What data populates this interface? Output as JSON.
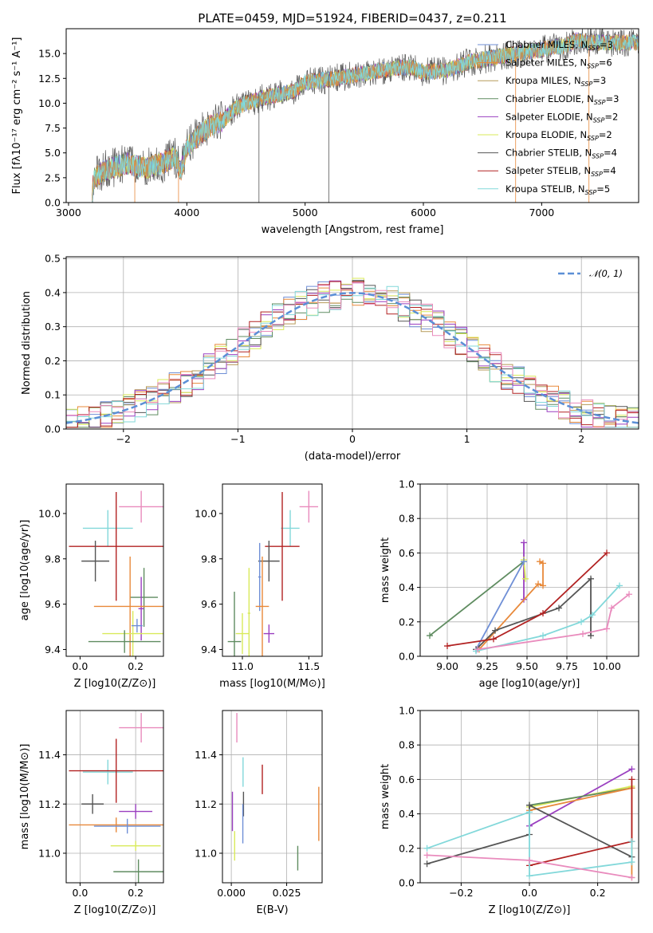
{
  "colors": {
    "Chabrier MILES": "#6f8fd6",
    "Salpeter MILES": "#e8893a",
    "Kroupa MILES": "#b69a58",
    "Chabrier ELODIE": "#5f8c60",
    "Salpeter ELODIE": "#9a3fc0",
    "Kroupa ELODIE": "#d9ea5a",
    "Chabrier STELIB": "#555555",
    "Salpeter STELIB": "#b22222",
    "Kroupa STELIB": "#82d8da",
    "pink": "#e98bbd",
    "gaussian": "#5b8fd6"
  },
  "chart_data": [
    {
      "id": "spectrum",
      "type": "line",
      "title": "PLATE=0459, MJD=51924, FIBERID=0437, z=0.211",
      "xlabel": "wavelength [Angstrom, rest frame]",
      "ylabel": "Flux [fλ10⁻¹⁷ erg cm⁻² s⁻¹ A⁻¹]",
      "xlim": [
        2980,
        7820
      ],
      "ylim": [
        0,
        17.5
      ],
      "xticks": [
        "3000",
        "4000",
        "5000",
        "6000",
        "7000"
      ],
      "yticks": [
        "0.0",
        "2.5",
        "5.0",
        "7.5",
        "10.0",
        "12.5",
        "15.0"
      ],
      "legend_position": "upper-right",
      "legend": [
        {
          "label": "Chabrier MILES, N",
          "sub": "SSP",
          "suffix": "=3"
        },
        {
          "label": "Salpeter MILES, N",
          "sub": "SSP",
          "suffix": "=6"
        },
        {
          "label": "Kroupa MILES, N",
          "sub": "SSP",
          "suffix": "=3"
        },
        {
          "label": "Chabrier ELODIE, N",
          "sub": "SSP",
          "suffix": "=3"
        },
        {
          "label": "Salpeter ELODIE, N",
          "sub": "SSP",
          "suffix": "=2"
        },
        {
          "label": "Kroupa ELODIE, N",
          "sub": "SSP",
          "suffix": "=2"
        },
        {
          "label": "Chabrier STELIB, N",
          "sub": "SSP",
          "suffix": "=4"
        },
        {
          "label": "Salpeter STELIB, N",
          "sub": "SSP",
          "suffix": "=4"
        },
        {
          "label": "Kroupa STELIB, N",
          "sub": "SSP",
          "suffix": "=5"
        }
      ],
      "continuum": [
        [
          3200,
          0.0
        ],
        [
          3210,
          2.4
        ],
        [
          3300,
          3.2
        ],
        [
          3400,
          3.6
        ],
        [
          3500,
          3.9
        ],
        [
          3650,
          3.5
        ],
        [
          3700,
          3.6
        ],
        [
          3800,
          4.0
        ],
        [
          3900,
          4.6
        ],
        [
          3950,
          3.2
        ],
        [
          4000,
          5.5
        ],
        [
          4100,
          6.8
        ],
        [
          4200,
          7.7
        ],
        [
          4300,
          8.2
        ],
        [
          4400,
          9.4
        ],
        [
          4500,
          10.0
        ],
        [
          4700,
          10.7
        ],
        [
          4900,
          11.2
        ],
        [
          5000,
          12.1
        ],
        [
          5200,
          12.4
        ],
        [
          5400,
          12.8
        ],
        [
          5600,
          13.2
        ],
        [
          5800,
          13.6
        ],
        [
          5900,
          13.6
        ],
        [
          6000,
          13.1
        ],
        [
          6200,
          13.3
        ],
        [
          6400,
          14.2
        ],
        [
          6600,
          14.6
        ],
        [
          6800,
          15.0
        ],
        [
          7000,
          15.4
        ],
        [
          7200,
          15.8
        ],
        [
          7300,
          16.4
        ],
        [
          7400,
          16.1
        ]
      ],
      "drops": [
        [
          3560,
          "#e8893a"
        ],
        [
          3930,
          "#e8893a"
        ],
        [
          6780,
          "#e8893a"
        ],
        [
          7400,
          "#e8893a"
        ],
        [
          4610,
          "#555555"
        ],
        [
          5200,
          "#555555"
        ]
      ],
      "noise_amplitude": 0.9
    },
    {
      "id": "residuals",
      "type": "histogram",
      "xlabel": "(data-model)/error",
      "ylabel": "Normed distribution",
      "xlim": [
        -2.5,
        2.5
      ],
      "ylim": [
        0,
        0.505
      ],
      "xticks": [
        "−2",
        "−1",
        "0",
        "1",
        "2"
      ],
      "yticks": [
        "0.0",
        "0.1",
        "0.2",
        "0.3",
        "0.4",
        "0.5"
      ],
      "bin_width": 0.1,
      "legend": [
        {
          "label": "𝒩(0, 1)",
          "style": "dashed"
        }
      ],
      "legend_position": "upper-right",
      "gaussian": {
        "mu": 0,
        "sigma": 1
      }
    },
    {
      "id": "age_Z",
      "type": "errorbar",
      "xlabel": "Z [log10(Z/Z⊙)]",
      "ylabel": "age  [log10(age/yr)]",
      "xlim": [
        -0.05,
        0.3
      ],
      "ylim": [
        9.37,
        10.13
      ],
      "xticks": [
        {
          "v": 0.0,
          "t": "0.0"
        },
        {
          "v": 0.2,
          "t": "0.2"
        }
      ],
      "yticks": [
        {
          "v": 9.4,
          "t": "9.4"
        },
        {
          "v": 9.6,
          "t": "9.6"
        },
        {
          "v": 9.8,
          "t": "9.8"
        },
        {
          "v": 10.0,
          "t": "10.0"
        }
      ],
      "points": [
        {
          "color": "pink",
          "x": 0.22,
          "xe": 0.08,
          "y": 10.03,
          "ye": 0.07
        },
        {
          "color": "Kroupa STELIB",
          "x": 0.1,
          "xe": 0.09,
          "y": 9.935,
          "ye": 0.08
        },
        {
          "color": "Salpeter STELIB",
          "x": 0.13,
          "xe": 0.17,
          "y": 9.855,
          "ye": 0.24
        },
        {
          "color": "Chabrier STELIB",
          "x": 0.055,
          "xe": 0.05,
          "y": 9.79,
          "ye": 0.09
        },
        {
          "color": "Chabrier ELODIE",
          "x": 0.23,
          "xe": 0.05,
          "y": 9.63,
          "ye": 0.13
        },
        {
          "color": "Salpeter ELODIE",
          "x": 0.22,
          "xe": 0.01,
          "y": 9.58,
          "ye": 0.14
        },
        {
          "color": "Salpeter MILES",
          "x": 0.18,
          "xe": 0.13,
          "y": 9.59,
          "ye": 0.22
        },
        {
          "color": "Kroupa ELODIE",
          "x": 0.19,
          "xe": 0.11,
          "y": 9.47,
          "ye": 0.1
        },
        {
          "color": "Chabrier ELODIE",
          "x": 0.16,
          "xe": 0.13,
          "y": 9.435,
          "ye": 0.05
        },
        {
          "color": "Chabrier MILES",
          "x": 0.205,
          "xe": 0.02,
          "y": 9.505,
          "ye": 0.03
        }
      ]
    },
    {
      "id": "age_mass",
      "type": "errorbar",
      "xlabel": "mass [log10(M/M⊙)]",
      "ylabel": "",
      "xlim": [
        10.85,
        11.6
      ],
      "ylim": [
        9.37,
        10.13
      ],
      "xticks": [
        {
          "v": 11.0,
          "t": "11.0"
        },
        {
          "v": 11.5,
          "t": "11.5"
        }
      ],
      "yticks": [
        {
          "v": 9.4,
          "t": "9.4"
        },
        {
          "v": 9.6,
          "t": "9.6"
        },
        {
          "v": 9.8,
          "t": "9.8"
        },
        {
          "v": 10.0,
          "t": "10.0"
        }
      ],
      "points": [
        {
          "color": "pink",
          "x": 11.5,
          "xe": 0.07,
          "y": 10.03,
          "ye": 0.07
        },
        {
          "color": "Kroupa STELIB",
          "x": 11.36,
          "xe": 0.07,
          "y": 9.935,
          "ye": 0.08
        },
        {
          "color": "Salpeter STELIB",
          "x": 11.3,
          "xe": 0.13,
          "y": 9.855,
          "ye": 0.24
        },
        {
          "color": "Chabrier STELIB",
          "x": 11.2,
          "xe": 0.08,
          "y": 9.79,
          "ye": 0.09
        },
        {
          "color": "Chabrier MILES",
          "x": 11.13,
          "xe": 0.01,
          "y": 9.72,
          "ye": 0.15
        },
        {
          "color": "Salpeter MILES",
          "x": 11.15,
          "xe": 0.05,
          "y": 9.59,
          "ye": 0.22
        },
        {
          "color": "Kroupa ELODIE",
          "x": 11.0,
          "xe": 0.05,
          "y": 9.47,
          "ye": 0.09
        },
        {
          "color": "Salpeter ELODIE",
          "x": 11.2,
          "xe": 0.04,
          "y": 9.47,
          "ye": 0.04
        },
        {
          "color": "Chabrier ELODIE",
          "x": 10.94,
          "xe": 0.05,
          "y": 9.435,
          "ye": 0.22
        },
        {
          "color": "Kroupa ELODIE",
          "x": 11.05,
          "xe": 0.01,
          "y": 9.56,
          "ye": 0.2
        }
      ]
    },
    {
      "id": "weight_age",
      "type": "line",
      "xlabel": "age  [log10(age/yr)]",
      "ylabel": "mass weight",
      "xlim": [
        8.83,
        10.2
      ],
      "ylim": [
        0,
        1.0
      ],
      "xticks": [
        {
          "v": 9.0,
          "t": "9.00"
        },
        {
          "v": 9.25,
          "t": "9.25"
        },
        {
          "v": 9.5,
          "t": "9.50"
        },
        {
          "v": 9.75,
          "t": "9.75"
        },
        {
          "v": 10.0,
          "t": "10.00"
        }
      ],
      "yticks": [
        {
          "v": 0,
          "t": "0.0"
        },
        {
          "v": 0.2,
          "t": "0.2"
        },
        {
          "v": 0.4,
          "t": "0.4"
        },
        {
          "v": 0.6,
          "t": "0.6"
        },
        {
          "v": 0.8,
          "t": "0.8"
        },
        {
          "v": 1.0,
          "t": "1.0"
        }
      ],
      "series": [
        {
          "color": "Chabrier ELODIE",
          "x": [
            8.89,
            9.48
          ],
          "y": [
            0.12,
            0.55
          ]
        },
        {
          "color": "Salpeter ELODIE",
          "x": [
            9.48,
            9.48
          ],
          "y": [
            0.66,
            0.33
          ]
        },
        {
          "color": "Kroupa ELODIE",
          "x": [
            9.48,
            9.49
          ],
          "y": [
            0.56,
            0.45
          ]
        },
        {
          "color": "Chabrier MILES",
          "x": [
            9.18,
            9.48
          ],
          "y": [
            0.04,
            0.55
          ]
        },
        {
          "color": "Salpeter MILES",
          "x": [
            9.2,
            9.57,
            9.6,
            9.6,
            9.58
          ],
          "y": [
            0.04,
            0.42,
            0.41,
            0.54,
            0.55
          ]
        },
        {
          "color": "Chabrier STELIB",
          "x": [
            9.18,
            9.3,
            9.7,
            9.9,
            9.9
          ],
          "y": [
            0.04,
            0.15,
            0.28,
            0.45,
            0.12
          ]
        },
        {
          "color": "Salpeter STELIB",
          "x": [
            9.0,
            9.29,
            9.6,
            10.0
          ],
          "y": [
            0.06,
            0.1,
            0.25,
            0.6
          ]
        },
        {
          "color": "Kroupa STELIB",
          "x": [
            9.18,
            9.6,
            9.84,
            9.91,
            10.08
          ],
          "y": [
            0.03,
            0.12,
            0.2,
            0.24,
            0.41
          ]
        },
        {
          "color": "pink",
          "x": [
            9.19,
            9.85,
            10.0,
            10.03,
            10.14
          ],
          "y": [
            0.04,
            0.13,
            0.16,
            0.28,
            0.36
          ]
        }
      ]
    },
    {
      "id": "mass_Z",
      "type": "errorbar",
      "xlabel": "Z [log10(Z/Z⊙)]",
      "ylabel": "mass [log10(M/M⊙)]",
      "xlim": [
        -0.05,
        0.3
      ],
      "ylim": [
        10.88,
        11.58
      ],
      "xticks": [
        {
          "v": 0.0,
          "t": "0.0"
        },
        {
          "v": 0.2,
          "t": "0.2"
        }
      ],
      "yticks": [
        {
          "v": 11.0,
          "t": "11.0"
        },
        {
          "v": 11.2,
          "t": "11.2"
        },
        {
          "v": 11.4,
          "t": "11.4"
        }
      ],
      "points": [
        {
          "color": "pink",
          "x": 0.22,
          "xe": 0.08,
          "y": 11.51,
          "ye": 0.06
        },
        {
          "color": "Kroupa STELIB",
          "x": 0.1,
          "xe": 0.09,
          "y": 11.33,
          "ye": 0.05
        },
        {
          "color": "Salpeter STELIB",
          "x": 0.13,
          "xe": 0.17,
          "y": 11.335,
          "ye": 0.13
        },
        {
          "color": "Chabrier STELIB",
          "x": 0.045,
          "xe": 0.04,
          "y": 11.2,
          "ye": 0.04
        },
        {
          "color": "Salpeter ELODIE",
          "x": 0.2,
          "xe": 0.06,
          "y": 11.17,
          "ye": 0.03
        },
        {
          "color": "Salpeter MILES",
          "x": 0.13,
          "xe": 0.17,
          "y": 11.115,
          "ye": 0.03
        },
        {
          "color": "Chabrier MILES",
          "x": 0.17,
          "xe": 0.12,
          "y": 11.11,
          "ye": 0.03
        },
        {
          "color": "Kroupa ELODIE",
          "x": 0.2,
          "xe": 0.09,
          "y": 11.03,
          "ye": 0.02
        },
        {
          "color": "Chabrier ELODIE",
          "x": 0.21,
          "xe": 0.09,
          "y": 10.925,
          "ye": 0.05
        }
      ]
    },
    {
      "id": "mass_EBV",
      "type": "errorbar",
      "xlabel": "E(B-V)",
      "ylabel": "",
      "xlim": [
        -0.004,
        0.041
      ],
      "ylim": [
        10.88,
        11.58
      ],
      "xticks": [
        {
          "v": 0.0,
          "t": "0.000"
        },
        {
          "v": 0.025,
          "t": "0.025"
        }
      ],
      "yticks": [
        {
          "v": 11.0,
          "t": "11.0"
        },
        {
          "v": 11.2,
          "t": "11.2"
        },
        {
          "v": 11.4,
          "t": "11.4"
        }
      ],
      "points": [
        {
          "color": "pink",
          "x": 0.0025,
          "xe": 0,
          "y": 11.51,
          "ye": 0.06
        },
        {
          "color": "Kroupa STELIB",
          "x": 0.0053,
          "xe": 0,
          "y": 11.33,
          "ye": 0.06
        },
        {
          "color": "Salpeter STELIB",
          "x": 0.014,
          "xe": 0,
          "y": 11.3,
          "ye": 0.06
        },
        {
          "color": "Chabrier STELIB",
          "x": 0.0055,
          "xe": 0,
          "y": 11.2,
          "ye": 0.05
        },
        {
          "color": "Salpeter ELODIE",
          "x": 0.0005,
          "xe": 0,
          "y": 11.17,
          "ye": 0.08
        },
        {
          "color": "Kroupa ELODIE",
          "x": 0.0015,
          "xe": 0,
          "y": 11.03,
          "ye": 0.06
        },
        {
          "color": "Chabrier MILES",
          "x": 0.0052,
          "xe": 0,
          "y": 11.12,
          "ye": 0.08
        },
        {
          "color": "Salpeter MILES",
          "x": 0.0395,
          "xe": 0,
          "y": 11.16,
          "ye": 0.11
        },
        {
          "color": "Chabrier ELODIE",
          "x": 0.03,
          "xe": 0,
          "y": 10.98,
          "ye": 0.05
        }
      ]
    },
    {
      "id": "weight_Z",
      "type": "line",
      "xlabel": "Z [log10(Z/Z⊙)]",
      "ylabel": "mass weight",
      "xlim": [
        -0.32,
        0.32
      ],
      "ylim": [
        0,
        1.0
      ],
      "xticks": [
        {
          "v": -0.2,
          "t": "−0.2"
        },
        {
          "v": 0.0,
          "t": "0.0"
        },
        {
          "v": 0.2,
          "t": "0.2"
        }
      ],
      "yticks": [
        {
          "v": 0,
          "t": "0.0"
        },
        {
          "v": 0.2,
          "t": "0.2"
        },
        {
          "v": 0.4,
          "t": "0.4"
        },
        {
          "v": 0.6,
          "t": "0.6"
        },
        {
          "v": 0.8,
          "t": "0.8"
        },
        {
          "v": 1.0,
          "t": "1.0"
        }
      ],
      "series": [
        {
          "color": "Kroupa ELODIE",
          "x": [
            0.0,
            0.3
          ],
          "y": [
            0.44,
            0.56
          ]
        },
        {
          "color": "Salpeter ELODIE",
          "x": [
            0.0,
            0.3
          ],
          "y": [
            0.33,
            0.66
          ]
        },
        {
          "color": "Chabrier ELODIE",
          "x": [
            0.0,
            0.3
          ],
          "y": [
            0.45,
            0.55
          ]
        },
        {
          "color": "Salpeter MILES",
          "x": [
            0.0,
            0.3,
            0.3
          ],
          "y": [
            0.42,
            0.55,
            0.03
          ]
        },
        {
          "color": "Chabrier STELIB",
          "x": [
            -0.3,
            0.0,
            0.0,
            0.3
          ],
          "y": [
            0.11,
            0.28,
            0.45,
            0.15
          ]
        },
        {
          "color": "Salpeter STELIB",
          "x": [
            0.0,
            0.3,
            0.3
          ],
          "y": [
            0.1,
            0.24,
            0.6
          ]
        },
        {
          "color": "Kroupa STELIB",
          "x": [
            -0.3,
            0.0,
            0.0,
            0.3,
            0.3
          ],
          "y": [
            0.2,
            0.41,
            0.04,
            0.12,
            0.24
          ]
        },
        {
          "color": "pink",
          "x": [
            -0.3,
            0.0,
            0.3
          ],
          "y": [
            0.16,
            0.13,
            0.03
          ]
        }
      ]
    }
  ]
}
